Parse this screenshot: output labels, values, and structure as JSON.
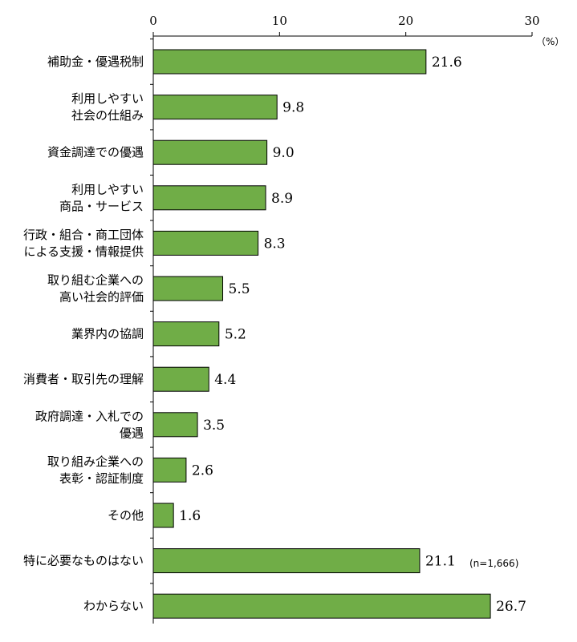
{
  "chart_data": {
    "type": "bar",
    "orientation": "horizontal",
    "categories": [
      [
        "補助金・優遇税制"
      ],
      [
        "利用しやすい",
        "社会の仕組み"
      ],
      [
        "資金調達での優遇"
      ],
      [
        "利用しやすい",
        "商品・サービス"
      ],
      [
        "行政・組合・商工団体",
        "による支援・情報提供"
      ],
      [
        "取り組む企業への",
        "高い社会的評価"
      ],
      [
        "業界内の協調"
      ],
      [
        "消費者・取引先の理解"
      ],
      [
        "政府調達・入札での",
        "優遇"
      ],
      [
        "取り組み企業への",
        "表彰・認証制度"
      ],
      [
        "その他"
      ],
      [
        "特に必要なものはない"
      ],
      [
        "わからない"
      ]
    ],
    "values": [
      21.6,
      9.8,
      9.0,
      8.9,
      8.3,
      5.5,
      5.2,
      4.4,
      3.5,
      2.6,
      1.6,
      21.1,
      26.7
    ],
    "value_labels": [
      "21.6",
      "9.8",
      "9.0",
      "8.9",
      "8.3",
      "5.5",
      "5.2",
      "4.4",
      "3.5",
      "2.6",
      "1.6",
      "21.1",
      "26.7"
    ],
    "xlim": [
      0,
      30
    ],
    "xticks": [
      "0",
      "10",
      "20",
      "30"
    ],
    "xtick_values": [
      0,
      10,
      20,
      30
    ],
    "unit": "（%）",
    "note": "(n=1,666)",
    "bar_color": "#70AD47",
    "bar_edge_color": "#000000",
    "axis_position": "top",
    "grid": false,
    "legend": "none"
  }
}
